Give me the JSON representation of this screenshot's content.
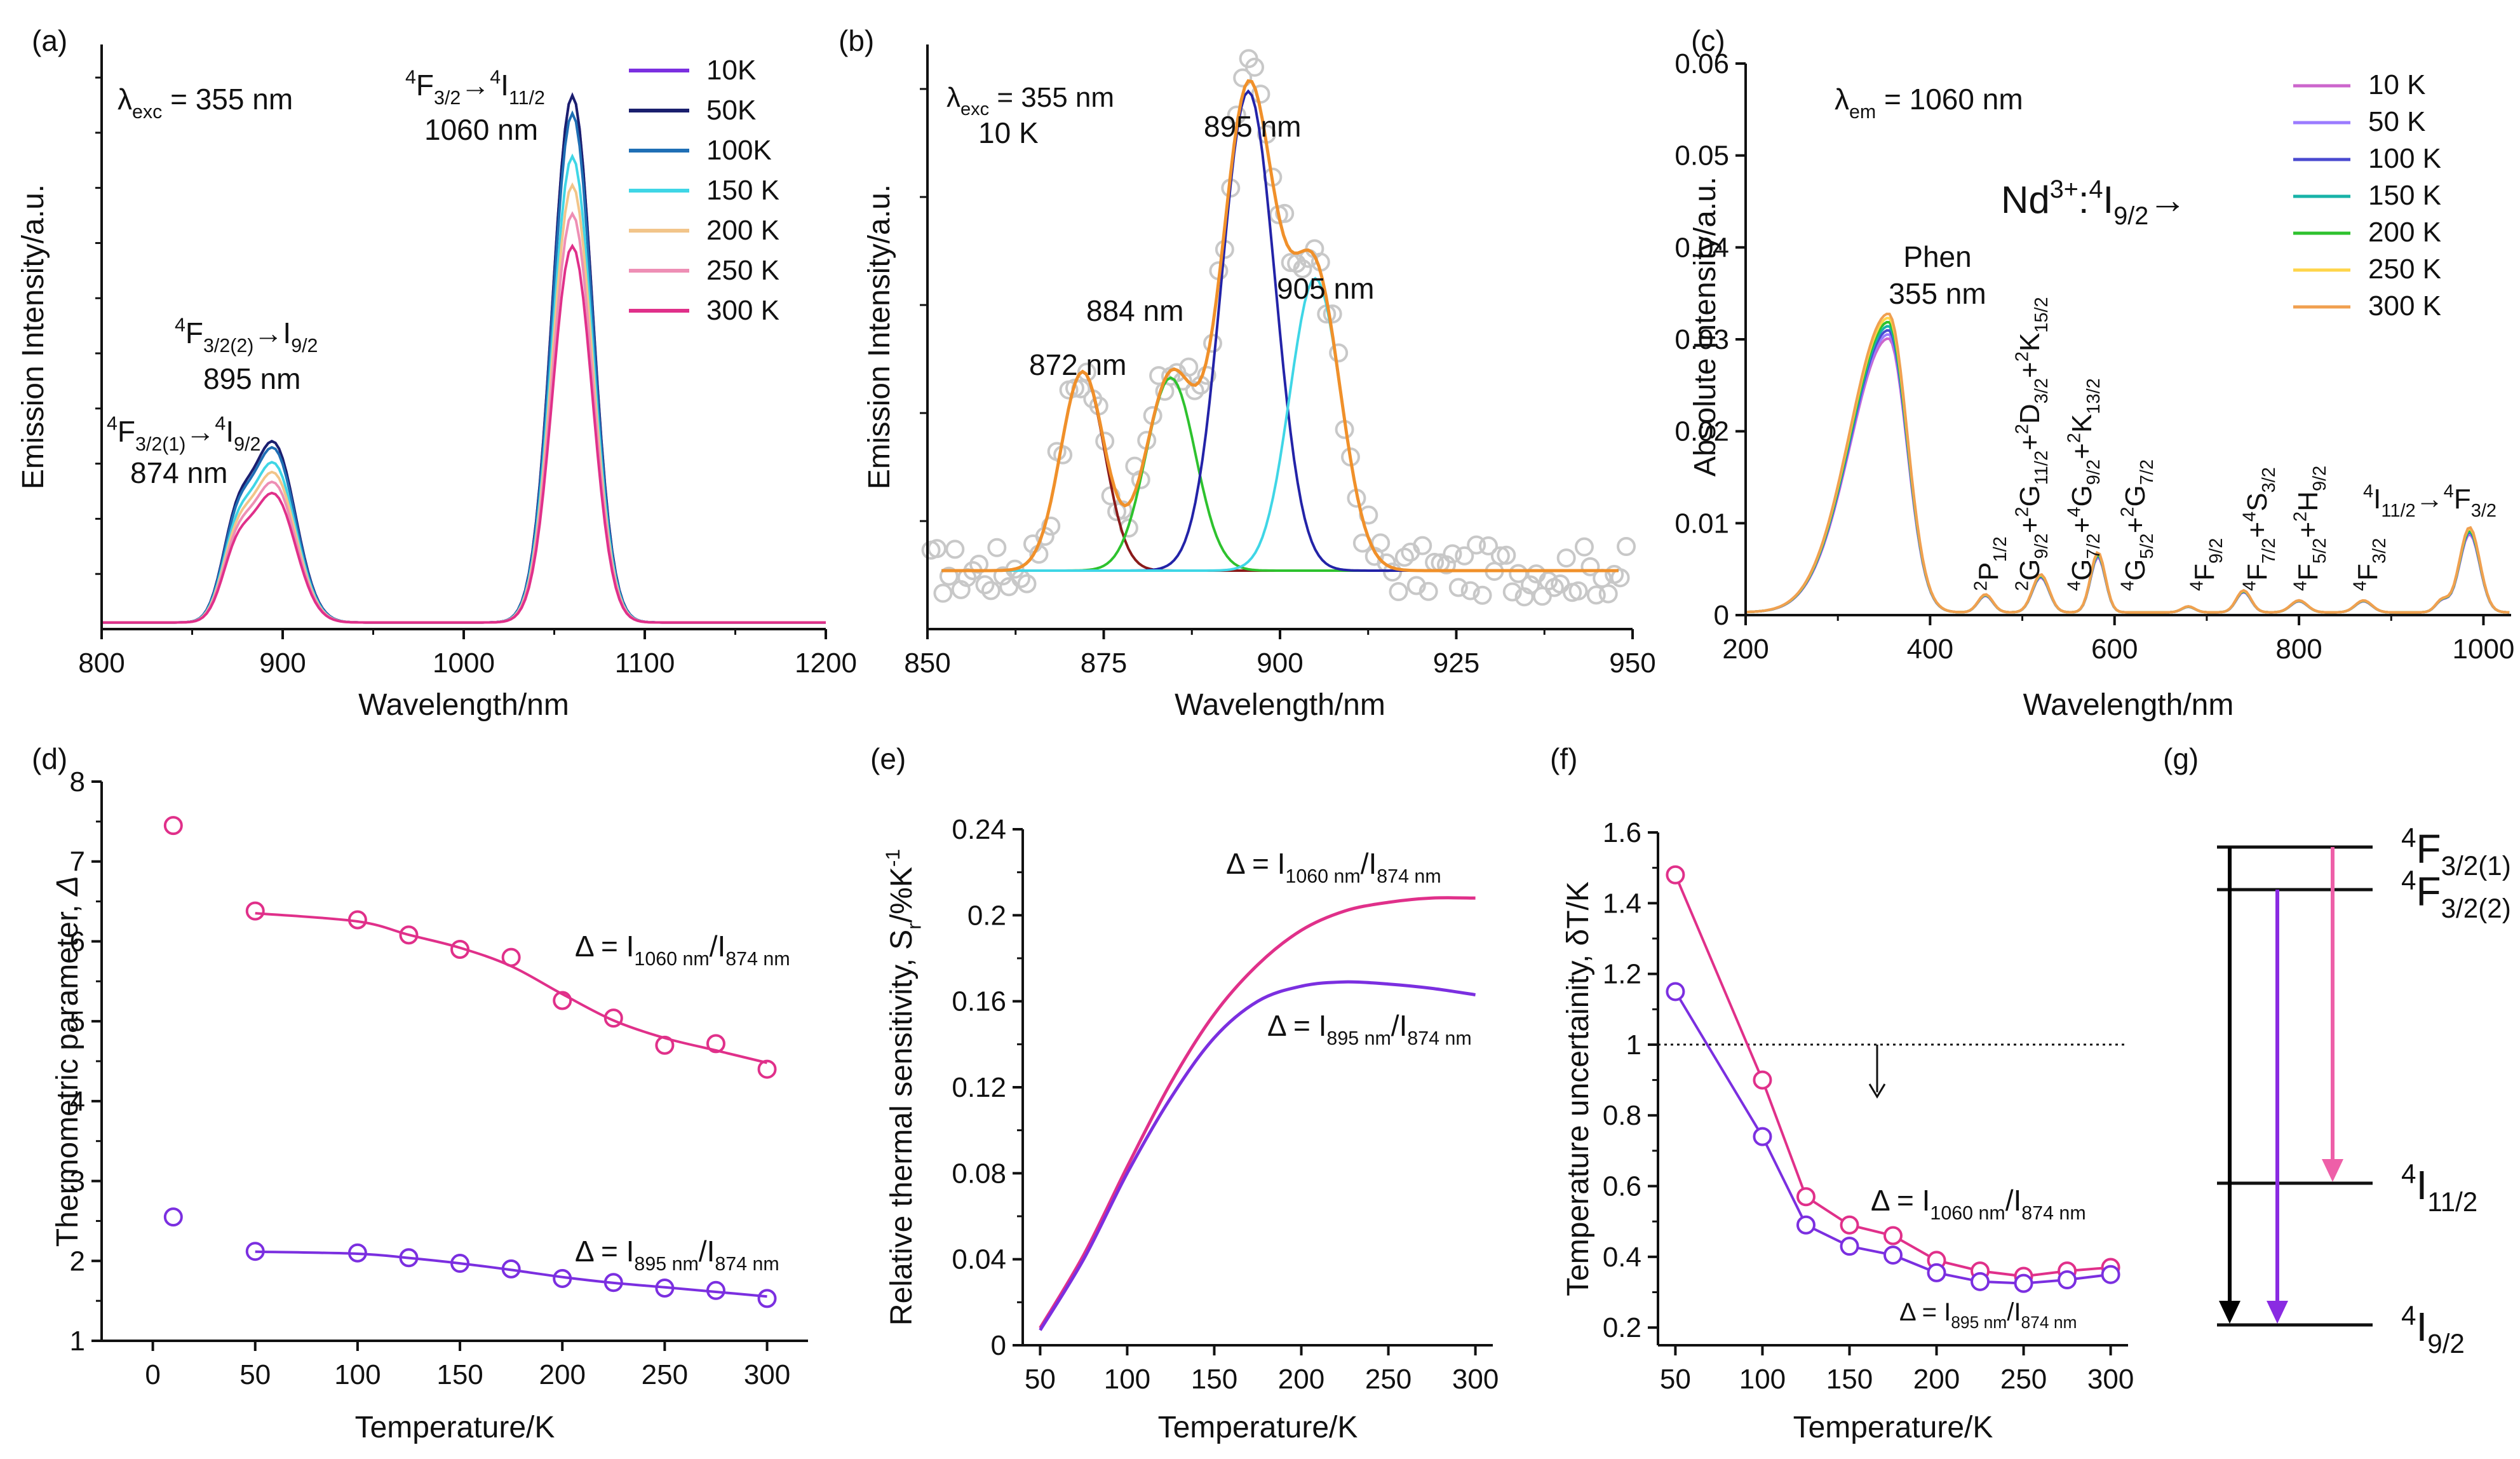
{
  "colors": {
    "purple": "#7b2fe0",
    "magenta": "#e0308a",
    "navy": "#1a1f6e",
    "blue": "#1f6fb5",
    "cyan": "#3fd6e6",
    "peach": "#f2c58a",
    "pink": "#ee8fb5",
    "green": "#2ec22e",
    "orange": "#f0902a",
    "gray": "#c8c8c8",
    "darkblue": "#2323a8",
    "darkred": "#8a1a1a"
  },
  "chart_data": [
    {
      "id": "a",
      "type": "line",
      "panel_label": "(a)",
      "xlabel": "Wavelength/nm",
      "ylabel": "Emission Intensity/a.u.",
      "xlim": [
        800,
        1200
      ],
      "ylim": [
        0,
        1.06
      ],
      "xticks": [
        "800",
        "900",
        "1000",
        "1100",
        "1200"
      ],
      "excitation": "λexc = 355 nm",
      "peaks": [
        {
          "center": 874,
          "width": 8,
          "amplitude": 0.1
        },
        {
          "center": 895,
          "width": 12,
          "amplitude": 0.22
        },
        {
          "center": 1060,
          "width": 11,
          "amplitude": 0.65
        }
      ],
      "series": [
        {
          "name": "10K",
          "scale": 1.47,
          "color": "#7b2fe0"
        },
        {
          "name": "50K",
          "scale": 1.47,
          "color": "#1a1f6e"
        },
        {
          "name": "100K",
          "scale": 1.42,
          "color": "#1f6fb5"
        },
        {
          "name": "150 K",
          "scale": 1.3,
          "color": "#3fd6e6"
        },
        {
          "name": "200 K",
          "scale": 1.22,
          "color": "#f2c58a"
        },
        {
          "name": "250 K",
          "scale": 1.14,
          "color": "#ee8fb5"
        },
        {
          "name": "300 K",
          "scale": 1.05,
          "color": "#e0308a"
        }
      ],
      "annotations": [
        {
          "base": "4F",
          "sub": "3/2(1)",
          "arrow": "→",
          "base2": "4I",
          "sub2": "9/2",
          "wl": "874 nm"
        },
        {
          "base": "4F",
          "sub": "3/2(2)",
          "arrow": "→",
          "base2": "I",
          "sub2": "9/2",
          "wl": "895 nm"
        },
        {
          "base": "4F",
          "sub": "3/2",
          "arrow": "→",
          "base2": "4I",
          "sub2": "11/2",
          "wl": "1060 nm"
        }
      ]
    },
    {
      "id": "b",
      "type": "scatter",
      "panel_label": "(b)",
      "xlabel": "Wavelength/nm",
      "ylabel": "Emission Intensity/a.u.",
      "xlim": [
        850,
        950
      ],
      "ylim": [
        0,
        1.0
      ],
      "xticks": [
        "850",
        "875",
        "900",
        "925",
        "950"
      ],
      "excitation": "λexc = 355 nm",
      "temperature": "10 K",
      "baseline": 0.1,
      "components": [
        {
          "label": "872 nm",
          "center": 872,
          "sigma": 3.1,
          "amplitude": 0.34,
          "color": "#8a1a1a"
        },
        {
          "label": "884 nm",
          "center": 884.5,
          "sigma": 3.5,
          "amplitude": 0.33,
          "color": "#2ec22e"
        },
        {
          "label": "895 nm",
          "center": 895.5,
          "sigma": 3.8,
          "amplitude": 0.82,
          "color": "#2323a8"
        },
        {
          "label": "905 nm",
          "center": 905,
          "sigma": 3.6,
          "amplitude": 0.5,
          "color": "#3fd6e6"
        }
      ],
      "fit_color": "#f0902a",
      "points_color": "#c8c8c8"
    },
    {
      "id": "c",
      "type": "line",
      "panel_label": "(c)",
      "xlabel": "Wavelength/nm",
      "ylabel": "Absolute Intensity/a.u.",
      "xlim": [
        200,
        1030
      ],
      "ylim": [
        0,
        0.06
      ],
      "xticks": [
        "200",
        "400",
        "600",
        "800",
        "1000"
      ],
      "yticks": [
        "0",
        "0.01",
        "0.02",
        "0.03",
        "0.04",
        "0.05",
        "0.06"
      ],
      "emission": "λem = 1060 nm",
      "header": {
        "base": "Nd",
        "sup": "3+",
        "mid": ":",
        "sup2": "4",
        "base2": "I",
        "sub": "9/2",
        "arrow": "→"
      },
      "phen": [
        "Phen",
        "355 nm"
      ],
      "series": [
        {
          "name": "10 K",
          "color": "#cc66cc"
        },
        {
          "name": "50 K",
          "color": "#9b7bff"
        },
        {
          "name": "100 K",
          "color": "#4a4ad0"
        },
        {
          "name": "150 K",
          "color": "#18b3a8"
        },
        {
          "name": "200 K",
          "color": "#2ec22e"
        },
        {
          "name": "250 K",
          "color": "#ffd54a"
        },
        {
          "name": "300 K",
          "color": "#f0a050"
        }
      ],
      "transitions": [
        "2P1/2",
        "2G9/2+2G11/2+2D3/2+2K15/2",
        "4G7/2+4G9/2+2K13/2",
        "4G5/2+2G7/2",
        "4F9/2",
        "4F7/2+4S3/2",
        "4F5/2+2H9/2",
        "4F3/2",
        "4I11/2→4F3/2"
      ]
    },
    {
      "id": "d",
      "type": "scatter",
      "panel_label": "(d)",
      "xlabel": "Temperature/K",
      "ylabel": "Thermometric parameter, Δ",
      "xlim": [
        -25,
        320
      ],
      "ylim": [
        1,
        8
      ],
      "xticks": [
        "0",
        "50",
        "100",
        "150",
        "200",
        "250",
        "300"
      ],
      "yticks": [
        "1",
        "2",
        "3",
        "4",
        "5",
        "6",
        "7",
        "8"
      ],
      "series": [
        {
          "name": "Δ = I1060 nm/I874 nm",
          "color": "#e0308a",
          "x": [
            10,
            50,
            100,
            125,
            150,
            175,
            200,
            225,
            250,
            275,
            300
          ],
          "y": [
            7.45,
            6.38,
            6.27,
            6.08,
            5.9,
            5.8,
            5.26,
            5.04,
            4.7,
            4.72,
            4.4
          ]
        },
        {
          "name": "Δ = I895 nm/I874 nm",
          "color": "#7b2fe0",
          "x": [
            10,
            50,
            100,
            125,
            150,
            175,
            200,
            225,
            250,
            275,
            300
          ],
          "y": [
            2.55,
            2.12,
            2.1,
            2.04,
            1.97,
            1.9,
            1.78,
            1.73,
            1.66,
            1.63,
            1.53
          ]
        }
      ],
      "labels": [
        {
          "delta": "Δ = I",
          "sub1": "1060 nm",
          "slash": "/I",
          "sub2": "874 nm"
        },
        {
          "delta": "Δ = I",
          "sub1": "895 nm",
          "slash": "/I",
          "sub2": "874 nm"
        }
      ]
    },
    {
      "id": "e",
      "type": "line",
      "panel_label": "(e)",
      "xlabel": "Temperature/K",
      "ylabel": "Relative thermal sensitivity, Sr/%K-1",
      "ylabel_parts": {
        "a": "Relative thermal sensitivity, S",
        "sub": "r",
        "b": "/%K",
        "sup": "-1"
      },
      "xlim": [
        40,
        310
      ],
      "ylim": [
        0,
        0.24
      ],
      "xticks": [
        "50",
        "100",
        "150",
        "200",
        "250",
        "300"
      ],
      "yticks": [
        "0",
        "0.04",
        "0.08",
        "0.12",
        "0.16",
        "0.2",
        "0.24"
      ],
      "series": [
        {
          "name": "Δ = I1060 nm/I874 nm",
          "color": "#e0308a",
          "x": [
            50,
            75,
            100,
            125,
            150,
            175,
            200,
            225,
            250,
            275,
            300
          ],
          "y": [
            0.008,
            0.042,
            0.083,
            0.122,
            0.154,
            0.177,
            0.193,
            0.202,
            0.206,
            0.208,
            0.208
          ]
        },
        {
          "name": "Δ = I895 nm/I874 nm",
          "color": "#7b2fe0",
          "x": [
            50,
            75,
            100,
            125,
            150,
            175,
            200,
            225,
            250,
            275,
            300
          ],
          "y": [
            0.007,
            0.04,
            0.08,
            0.115,
            0.143,
            0.16,
            0.167,
            0.169,
            0.168,
            0.166,
            0.163
          ]
        }
      ],
      "labels": [
        {
          "delta": "Δ = I",
          "sub1": "1060 nm",
          "slash": "/I",
          "sub2": "874 nm"
        },
        {
          "delta": "Δ = I",
          "sub1": "895 nm",
          "slash": "/I",
          "sub2": "874 nm"
        }
      ]
    },
    {
      "id": "f",
      "type": "line",
      "panel_label": "(f)",
      "xlabel": "Temperature/K",
      "ylabel": "Temperature uncertainity, δT/K",
      "xlim": [
        40,
        310
      ],
      "ylim": [
        0.15,
        1.6
      ],
      "xticks": [
        "50",
        "100",
        "150",
        "200",
        "250",
        "300"
      ],
      "yticks": [
        "0.2",
        "0.4",
        "0.6",
        "0.8",
        "1",
        "1.2",
        "1.4",
        "1.6"
      ],
      "threshold": 1.0,
      "series": [
        {
          "name": "Δ = I1060 nm/I874 nm",
          "color": "#e0308a",
          "x": [
            50,
            100,
            125,
            150,
            175,
            200,
            225,
            250,
            275,
            300
          ],
          "y": [
            1.48,
            0.9,
            0.57,
            0.49,
            0.46,
            0.39,
            0.36,
            0.345,
            0.36,
            0.37
          ]
        },
        {
          "name": "Δ = I895 nm/I874 nm",
          "color": "#7b2fe0",
          "x": [
            50,
            100,
            125,
            150,
            175,
            200,
            225,
            250,
            275,
            300
          ],
          "y": [
            1.15,
            0.74,
            0.49,
            0.43,
            0.405,
            0.355,
            0.33,
            0.325,
            0.335,
            0.35
          ]
        }
      ],
      "labels": [
        {
          "delta": "Δ = I",
          "sub1": "1060 nm",
          "slash": "/I",
          "sub2": "874 nm"
        },
        {
          "delta": "Δ = I",
          "sub1": "895 nm",
          "slash": "/I",
          "sub2": "874 nm"
        }
      ]
    },
    {
      "id": "g",
      "type": "diagram",
      "panel_label": "(g)",
      "levels": [
        {
          "base": "4F",
          "sub": "3/2(1)"
        },
        {
          "base": "4F",
          "sub": "3/2(2)"
        },
        {
          "base": "4I",
          "sub": "11/2"
        },
        {
          "base": "4I",
          "sub": "9/2"
        }
      ],
      "arrows": [
        {
          "from": 0,
          "to": 3,
          "color": "#000000"
        },
        {
          "from": 1,
          "to": 3,
          "color": "#8a2be2"
        },
        {
          "from": 0,
          "to": 2,
          "color": "#ee5fa8"
        }
      ]
    }
  ]
}
